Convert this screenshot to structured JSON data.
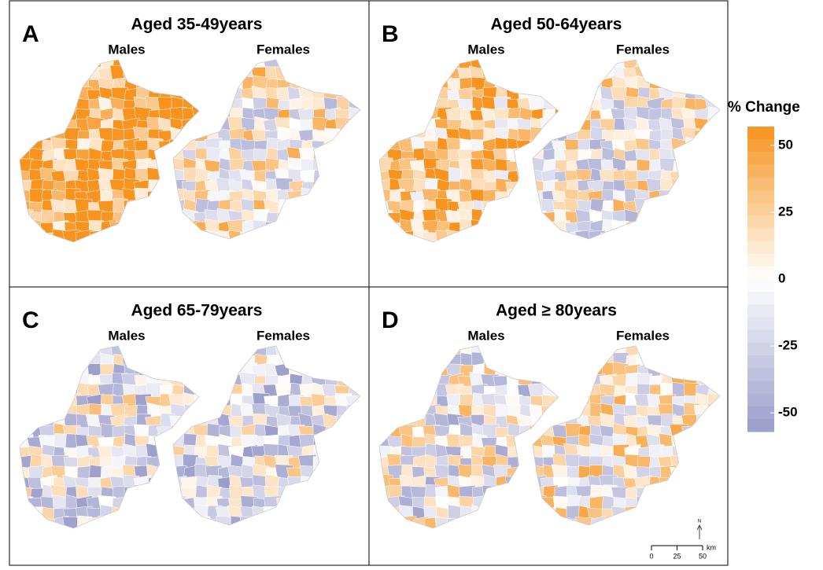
{
  "panels": [
    {
      "letter": "A",
      "title": "Aged 35-49years",
      "maps": [
        "Males",
        "Females"
      ]
    },
    {
      "letter": "B",
      "title": "Aged 50-64years",
      "maps": [
        "Males",
        "Females"
      ]
    },
    {
      "letter": "C",
      "title": "Aged 65-79years",
      "maps": [
        "Males",
        "Females"
      ]
    },
    {
      "letter": "D",
      "title": "Aged ≥ 80years",
      "maps": [
        "Males",
        "Females"
      ]
    }
  ],
  "legend": {
    "title": "% Change",
    "lim": [
      -57,
      57
    ],
    "ticks": [
      50,
      25,
      0,
      -25,
      -50
    ],
    "colors": [
      "#9a9cca",
      "#ffffff",
      "#f7931e"
    ]
  },
  "scale_bar": {
    "ticks": [
      0,
      25,
      50
    ],
    "unit": "km",
    "north": "N"
  }
}
